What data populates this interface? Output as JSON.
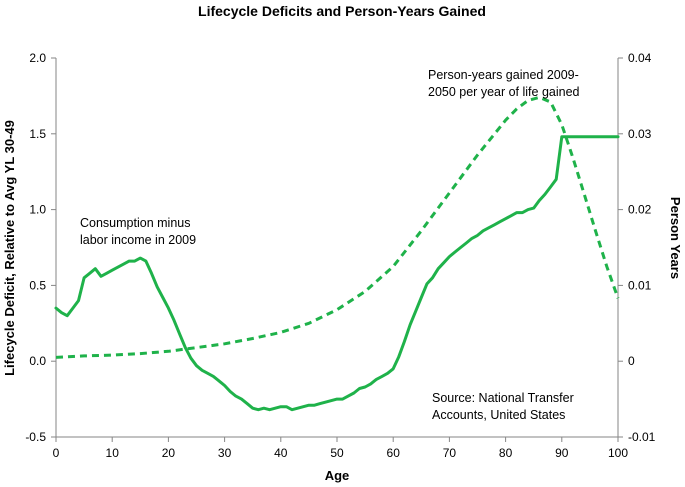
{
  "chart_data": {
    "type": "line",
    "title": "Lifecycle Deficits and Person-Years Gained",
    "xlabel": "Age",
    "ylabel_left": "Lifecycle Deficit, Relative to Avg YL 30-49",
    "ylabel_right": "Person Years",
    "xlim": [
      0,
      100
    ],
    "ylim_left": [
      -0.5,
      2.0
    ],
    "ylim_right": [
      -0.01,
      0.04
    ],
    "x_ticks": [
      0,
      10,
      20,
      30,
      40,
      50,
      60,
      70,
      80,
      90,
      100
    ],
    "y_left_ticks": [
      "-0.5",
      "0.0",
      "0.5",
      "1.0",
      "1.5",
      "2.0"
    ],
    "y_left_tick_values": [
      -0.5,
      0.0,
      0.5,
      1.0,
      1.5,
      2.0
    ],
    "y_right_ticks": [
      "-0.01",
      "0",
      "0.01",
      "0.02",
      "0.03",
      "0.04"
    ],
    "y_right_tick_values": [
      -0.01,
      0.0,
      0.01,
      0.02,
      0.03,
      0.04
    ],
    "color": "#1fb24a",
    "series": [
      {
        "name": "Consumption minus labor income in 2009",
        "axis": "left",
        "style": "solid",
        "x": [
          0,
          1,
          2,
          3,
          4,
          5,
          6,
          7,
          8,
          9,
          10,
          11,
          12,
          13,
          14,
          15,
          16,
          17,
          18,
          19,
          20,
          21,
          22,
          23,
          24,
          25,
          26,
          27,
          28,
          29,
          30,
          31,
          32,
          33,
          34,
          35,
          36,
          37,
          38,
          39,
          40,
          41,
          42,
          43,
          44,
          45,
          46,
          47,
          48,
          49,
          50,
          51,
          52,
          53,
          54,
          55,
          56,
          57,
          58,
          59,
          60,
          61,
          62,
          63,
          64,
          65,
          66,
          67,
          68,
          69,
          70,
          71,
          72,
          73,
          74,
          75,
          76,
          77,
          78,
          79,
          80,
          81,
          82,
          83,
          84,
          85,
          86,
          87,
          88,
          89,
          90,
          91,
          92,
          93,
          94,
          95,
          96,
          97,
          98,
          99,
          100
        ],
        "values": [
          0.35,
          0.32,
          0.3,
          0.35,
          0.4,
          0.55,
          0.58,
          0.61,
          0.56,
          0.58,
          0.6,
          0.62,
          0.64,
          0.66,
          0.66,
          0.68,
          0.66,
          0.58,
          0.49,
          0.42,
          0.35,
          0.27,
          0.18,
          0.09,
          0.02,
          -0.03,
          -0.06,
          -0.08,
          -0.1,
          -0.13,
          -0.16,
          -0.2,
          -0.23,
          -0.25,
          -0.28,
          -0.31,
          -0.32,
          -0.31,
          -0.32,
          -0.31,
          -0.3,
          -0.3,
          -0.32,
          -0.31,
          -0.3,
          -0.29,
          -0.29,
          -0.28,
          -0.27,
          -0.26,
          -0.25,
          -0.25,
          -0.23,
          -0.21,
          -0.18,
          -0.17,
          -0.15,
          -0.12,
          -0.1,
          -0.08,
          -0.05,
          0.03,
          0.13,
          0.24,
          0.33,
          0.42,
          0.51,
          0.55,
          0.61,
          0.65,
          0.69,
          0.72,
          0.75,
          0.78,
          0.81,
          0.83,
          0.86,
          0.88,
          0.9,
          0.92,
          0.94,
          0.96,
          0.98,
          0.98,
          1.0,
          1.01,
          1.06,
          1.1,
          1.15,
          1.2,
          1.48,
          1.48,
          1.48,
          1.48,
          1.48,
          1.48,
          1.48,
          1.48,
          1.48,
          1.48,
          1.48
        ]
      },
      {
        "name": "Person-years gained 2009-2050 per year of life gained",
        "axis": "right",
        "style": "dashed",
        "x": [
          0,
          5,
          10,
          15,
          20,
          25,
          30,
          35,
          40,
          45,
          50,
          55,
          60,
          65,
          70,
          75,
          80,
          82,
          84,
          86,
          88,
          90,
          92,
          94,
          96,
          98,
          100
        ],
        "values": [
          0.0005,
          0.0007,
          0.0008,
          0.001,
          0.0013,
          0.0018,
          0.0023,
          0.003,
          0.0038,
          0.005,
          0.0068,
          0.0092,
          0.0125,
          0.0172,
          0.0222,
          0.0272,
          0.0318,
          0.0333,
          0.0344,
          0.0348,
          0.0342,
          0.0312,
          0.0268,
          0.022,
          0.0172,
          0.0125,
          0.0083
        ]
      }
    ],
    "annotations": {
      "line1_a": "Consumption minus",
      "line1_b": "labor income in 2009",
      "line2_a": "Person-years  gained 2009-",
      "line2_b": "2050 per year of life gained",
      "source_a": "Source: National Transfer",
      "source_b": "Accounts, United States"
    }
  }
}
